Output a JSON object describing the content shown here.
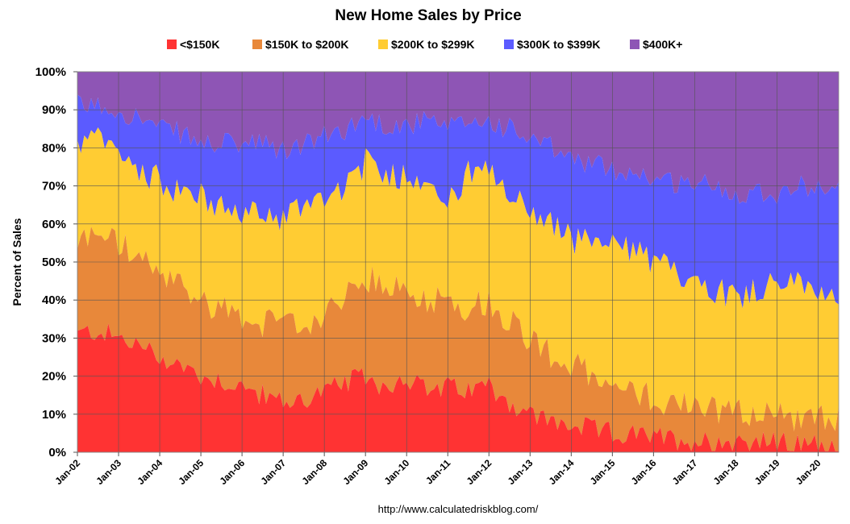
{
  "chart_data": {
    "type": "area",
    "stacked": true,
    "percent": true,
    "title": "New Home Sales by Price",
    "ylabel": "Percent of Sales",
    "xlabel": "",
    "ylim": [
      0,
      100
    ],
    "y_ticks": [
      "0%",
      "10%",
      "20%",
      "30%",
      "40%",
      "50%",
      "60%",
      "70%",
      "80%",
      "90%",
      "100%"
    ],
    "x_ticks": [
      "Jan-02",
      "Jan-03",
      "Jan-04",
      "Jan-05",
      "Jan-06",
      "Jan-07",
      "Jan-08",
      "Jan-09",
      "Jan-10",
      "Jan-11",
      "Jan-12",
      "Jan-13",
      "Jan-14",
      "Jan-15",
      "Jan-16",
      "Jan-17",
      "Jan-18",
      "Jan-19",
      "Jan-20"
    ],
    "x_range": [
      2002.0,
      2020.5
    ],
    "legend_position": "top-center",
    "grid": true,
    "source": "http://www.calculatedriskblog.com/",
    "cumulative_anchors": {
      "description": "Approximate cumulative share (%) at the top of each band, read off the chart",
      "x": [
        2002.0,
        2002.5,
        2003.0,
        2003.5,
        2004.0,
        2004.5,
        2005.0,
        2005.5,
        2006.0,
        2006.5,
        2007.0,
        2007.5,
        2008.0,
        2008.5,
        2009.0,
        2009.5,
        2010.0,
        2010.5,
        2011.0,
        2011.5,
        2012.0,
        2012.5,
        2013.0,
        2013.5,
        2014.0,
        2014.5,
        2015.0,
        2015.5,
        2016.0,
        2016.5,
        2017.0,
        2017.5,
        2018.0,
        2018.5,
        2019.0,
        2019.5,
        2020.0,
        2020.5
      ],
      "lt150": [
        31,
        32,
        30,
        28,
        25,
        23,
        20,
        19,
        17,
        15,
        13,
        14,
        16,
        18,
        20,
        17,
        20,
        16,
        17,
        16,
        18,
        13,
        10,
        8,
        7,
        6,
        5,
        4.5,
        4,
        3.5,
        3,
        3,
        3,
        3,
        2.5,
        2,
        2,
        1.5
      ],
      "to200": [
        55,
        58,
        55,
        51,
        46,
        44,
        40,
        38,
        36,
        34,
        33,
        34,
        36,
        40,
        46,
        43,
        43,
        40,
        41,
        38,
        40,
        35,
        30,
        26,
        23,
        20,
        16,
        16,
        14,
        13,
        13,
        11,
        11,
        10,
        10,
        9,
        9,
        9
      ],
      "to300": [
        81,
        82,
        78,
        75,
        71,
        69,
        67,
        64,
        63,
        62,
        62,
        65,
        68,
        70,
        76,
        73,
        73,
        72,
        65,
        73,
        73,
        67,
        64,
        60,
        56,
        55,
        54,
        53,
        50,
        47,
        46,
        43,
        41,
        43,
        45,
        44,
        43,
        41
      ],
      "to400": [
        91,
        91,
        90,
        88,
        85,
        84,
        81,
        81,
        81,
        81,
        79,
        81,
        83,
        85,
        88,
        86,
        86,
        87,
        85,
        87,
        87,
        85,
        82,
        80,
        77,
        76,
        74,
        74,
        72,
        71,
        71,
        70,
        68,
        69,
        68,
        70,
        70,
        69
      ]
    },
    "series": [
      {
        "name": "<$150K",
        "color": "#FF3333"
      },
      {
        "name": "$150K to $200K",
        "color": "#E8883A"
      },
      {
        "name": "$200K to $299K",
        "color": "#FFCC33"
      },
      {
        "name": "$300K to $399K",
        "color": "#5B5BFF"
      },
      {
        "name": "$400K+",
        "color": "#8E55B5"
      }
    ]
  }
}
